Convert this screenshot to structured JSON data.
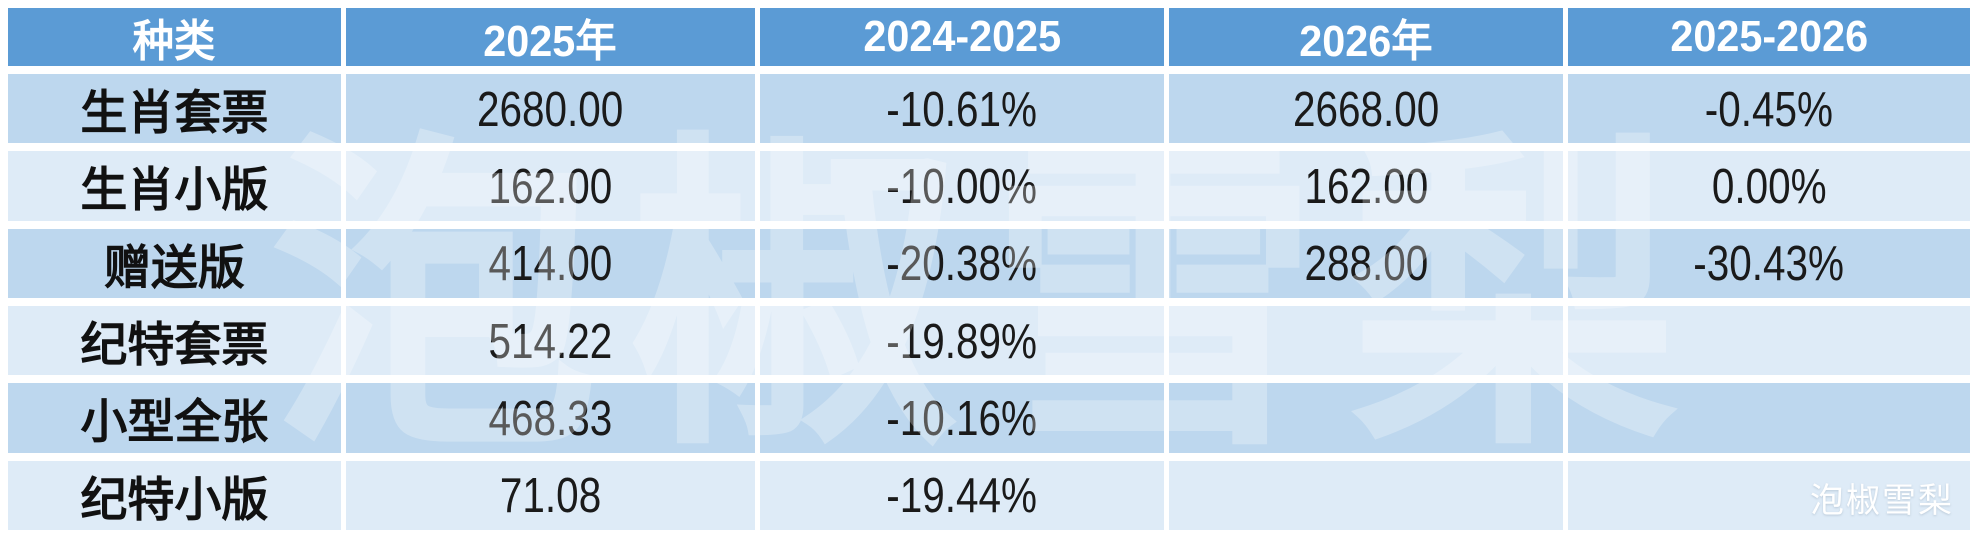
{
  "table": {
    "headers": [
      "种类",
      "2025年",
      "2024-2025",
      "2026年",
      "2025-2026"
    ],
    "rows": [
      {
        "cells": [
          "生肖套票",
          "2680.00",
          "-10.61%",
          "2668.00",
          "-0.45%"
        ]
      },
      {
        "cells": [
          "生肖小版",
          "162.00",
          "-10.00%",
          "162.00",
          "0.00%"
        ]
      },
      {
        "cells": [
          "赠送版",
          "414.00",
          "-20.38%",
          "288.00",
          "-30.43%"
        ]
      },
      {
        "cells": [
          "纪特套票",
          "514.22",
          "-19.89%",
          "",
          ""
        ]
      },
      {
        "cells": [
          "小型全张",
          "468.33",
          "-10.16%",
          "",
          ""
        ]
      },
      {
        "cells": [
          "纪特小版",
          "71.08",
          "-19.44%",
          "",
          ""
        ]
      }
    ]
  },
  "watermark": {
    "text": "泡椒雪梨",
    "corner_label": "泡椒雪梨"
  },
  "colors": {
    "header_bg": "#5b9bd5",
    "row_odd_bg": "#bdd7ee",
    "row_even_bg": "#deebf7",
    "grid_lines": "#ffffff",
    "header_text": "#ffffff",
    "cell_text": "#1a1a1a"
  },
  "chart_data": {
    "type": "table",
    "title": "",
    "columns": [
      "种类",
      "2025年",
      "2024-2025",
      "2026年",
      "2025-2026"
    ],
    "rows": [
      [
        "生肖套票",
        2680.0,
        "-10.61%",
        2668.0,
        "-0.45%"
      ],
      [
        "生肖小版",
        162.0,
        "-10.00%",
        162.0,
        "0.00%"
      ],
      [
        "赠送版",
        414.0,
        "-20.38%",
        288.0,
        "-30.43%"
      ],
      [
        "纪特套票",
        514.22,
        "-19.89%",
        null,
        null
      ],
      [
        "小型全张",
        468.33,
        "-10.16%",
        null,
        null
      ],
      [
        "纪特小版",
        71.08,
        "-19.44%",
        null,
        null
      ]
    ]
  }
}
